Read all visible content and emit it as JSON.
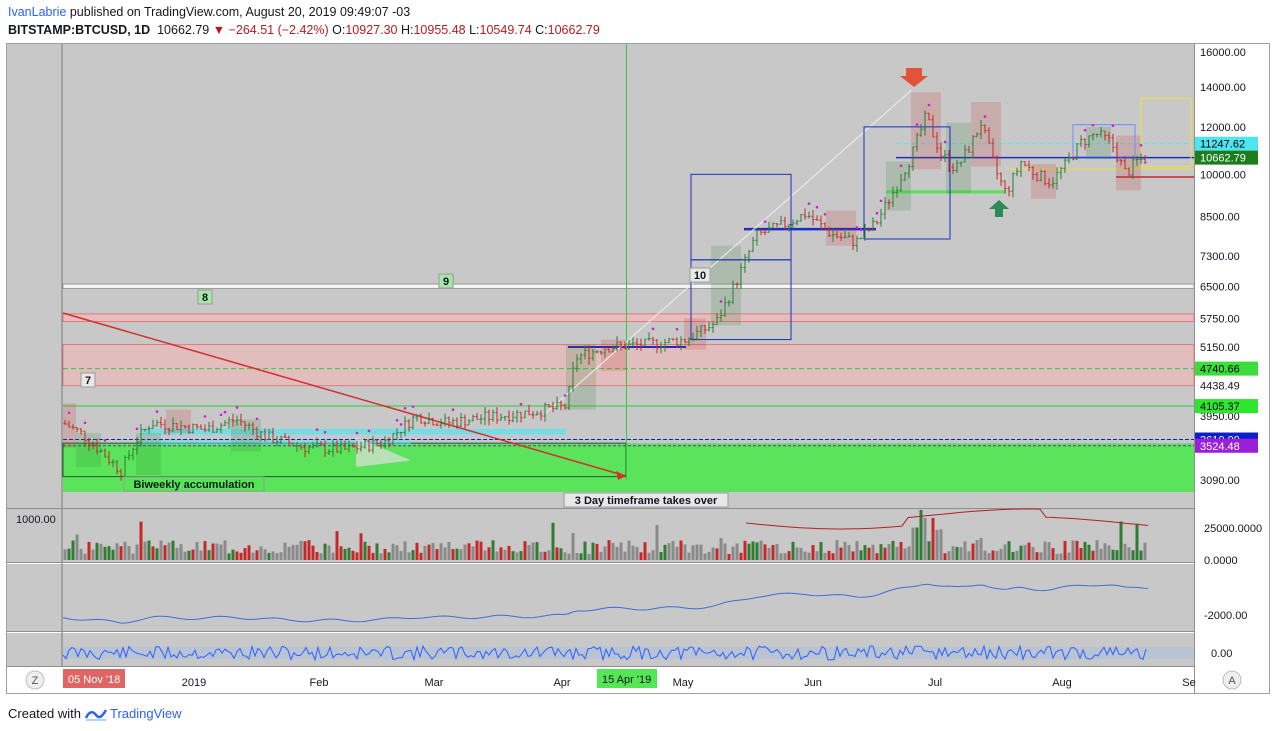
{
  "header": {
    "author": "IvanLabrie",
    "published_text": "published on TradingView.com, August 20, 2019 09:49:07 -03",
    "symbol": "BITSTAMP:BTCUSD, 1D",
    "price": "10662.79",
    "change": "−264.51 (−2.42%)",
    "o_label": "O:",
    "o_value": "10927.30",
    "h_label": "H:",
    "h_value": "10955.48",
    "l_label": "L:",
    "l_value": "10549.74",
    "c_label": "C:",
    "c_value": "10662.79"
  },
  "footer": {
    "created_with": "Created with",
    "brand": "TradingView"
  },
  "colors": {
    "chart_bg": "#c8c8c8",
    "up": "#2e7d32",
    "down": "#c62828",
    "accumulation_green": "#55e655",
    "resistance_pink": "#f4b6b6",
    "box_blue": "#1a2fbf",
    "cyan": "#4de6f0"
  },
  "chart_data": {
    "type": "candlestick",
    "scale": "log",
    "y_axis_ticks": [
      "16000.00",
      "14000.00",
      "12000.00",
      "10000.00",
      "8500.00",
      "7300.00",
      "6500.00",
      "5750.00",
      "5150.00",
      "4438.49",
      "3950.00",
      "3090.00"
    ],
    "price_labels": [
      {
        "text": "11247.62",
        "value": 11247.62,
        "color": "#4de6f0",
        "text_color": "#000000"
      },
      {
        "text": "10662.79",
        "value": 10662.79,
        "color": "#1b7d1b",
        "text_color": "#ffffff"
      },
      {
        "text": "4740.66",
        "value": 4740.66,
        "color": "#3ddc3d",
        "text_color": "#000000"
      },
      {
        "text": "4105.37",
        "value": 4105.37,
        "color": "#2ee62e",
        "text_color": "#000000"
      },
      {
        "text": "3610.00",
        "value": 3610.0,
        "color": "#0d1fcc",
        "text_color": "#ffffff"
      },
      {
        "text": "3524.48",
        "value": 3524.48,
        "color": "#9b1fd6",
        "text_color": "#ffffff"
      }
    ],
    "x_axis_labels": [
      "2019",
      "Feb",
      "Mar",
      "Apr",
      "May",
      "Jun",
      "Jul",
      "Aug",
      "Se"
    ],
    "x_axis_highlights": [
      "05 Nov '18",
      "15 Apr '19"
    ],
    "annotations": [
      "7",
      "8",
      "9",
      "10",
      "Biweekly accumulation",
      "3 Day timeframe takes over"
    ],
    "key_levels": [
      {
        "name": "accumulation_zone",
        "low": 2950,
        "high": 3560
      },
      {
        "name": "resistance_zone",
        "low": 4440,
        "high": 5200
      },
      {
        "name": "resistance_zone_upper",
        "low": 5680,
        "high": 5850
      },
      {
        "name": "white_band",
        "low": 6450,
        "high": 6560
      }
    ],
    "volume_panel": {
      "left_label": "1000.00",
      "ticks": [
        "25000.0000",
        "0.0000"
      ]
    },
    "indicator_panel_1": {
      "ticks": [
        "-2000.00"
      ]
    },
    "indicator_panel_2": {
      "ticks": [
        "0.00"
      ]
    },
    "corner_buttons": {
      "left": "Z",
      "right": "A"
    },
    "last_close": 10662.79
  }
}
